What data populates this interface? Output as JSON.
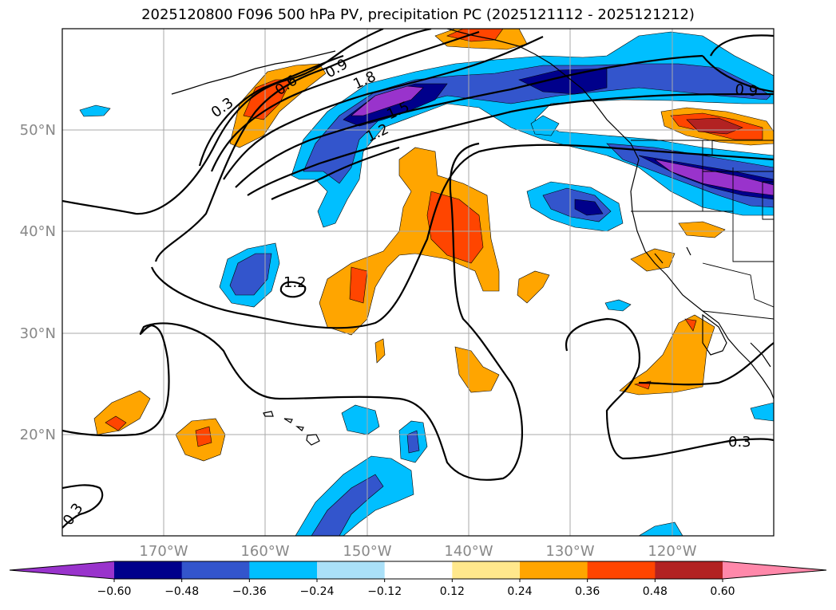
{
  "title": "2025120800 F096 500 hPa PV, precipitation PC (2025121112 - 2025121212)",
  "lat_labels": [
    "50°N",
    "40°N",
    "30°N",
    "20°N"
  ],
  "lon_labels": [
    "170°W",
    "160°W",
    "150°W",
    "140°W",
    "130°W",
    "120°W"
  ],
  "contour_labels": [
    "0.3",
    "0.6",
    "0.9",
    "1.8",
    "1.5",
    "1.2",
    "0.9",
    "1.2",
    "0.3",
    "0.3"
  ],
  "colorbar": {
    "tick_labels": [
      "−0.60",
      "−0.48",
      "−0.36",
      "−0.24",
      "−0.12",
      "0.12",
      "0.24",
      "0.36",
      "0.48",
      "0.60"
    ],
    "colors": [
      "#9933cc",
      "#00008b",
      "#3355cc",
      "#00bfff",
      "#aae0f8",
      "#ffffff",
      "#ffe88c",
      "#ffa500",
      "#ff4500",
      "#b22222",
      "#ff88aa"
    ]
  }
}
